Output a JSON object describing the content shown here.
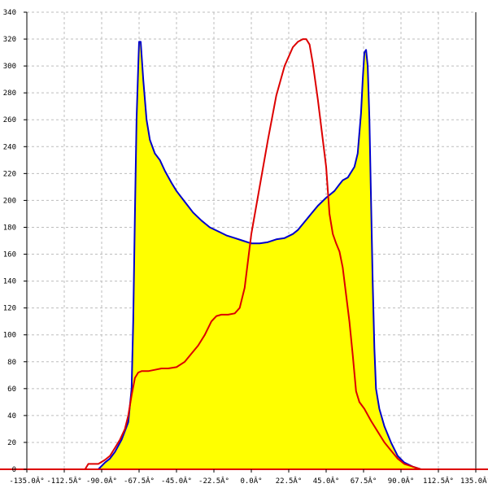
{
  "chart_data": {
    "type": "area",
    "title": "",
    "xlabel": "",
    "ylabel": "",
    "xlim": [
      -135,
      135
    ],
    "ylim": [
      0,
      340
    ],
    "x_ticks": [
      -135,
      -112.5,
      -90,
      -67.5,
      -45,
      -22.5,
      0,
      22.5,
      45,
      67.5,
      90,
      112.5,
      135
    ],
    "x_tick_labels": [
      "-135.0Â°",
      "-112.5Â°",
      "-90.0Â°",
      "-67.5Â°",
      "-45.0Â°",
      "-22.5Â°",
      "0.0Â°",
      "22.5Â°",
      "45.0Â°",
      "67.5Â°",
      "90.0Â°",
      "112.5Â°",
      "135.0Â°"
    ],
    "y_ticks": [
      0,
      20,
      40,
      60,
      80,
      100,
      120,
      140,
      160,
      180,
      200,
      220,
      240,
      260,
      280,
      300,
      320,
      340
    ],
    "y_tick_labels": [
      "0",
      "20",
      "40",
      "60",
      "80",
      "100",
      "120",
      "140",
      "160",
      "180",
      "200",
      "220",
      "240",
      "260",
      "280",
      "300",
      "320",
      "340"
    ],
    "grid": true,
    "series": [
      {
        "color": "#0000cc",
        "fill": "#ffff00",
        "points": [
          [
            -135,
            0
          ],
          [
            -100,
            0
          ],
          [
            -92,
            0
          ],
          [
            -88,
            5
          ],
          [
            -85,
            8
          ],
          [
            -82,
            13
          ],
          [
            -78,
            22
          ],
          [
            -74,
            35
          ],
          [
            -72,
            60
          ],
          [
            -71,
            110
          ],
          [
            -70,
            190
          ],
          [
            -69,
            260
          ],
          [
            -68,
            300
          ],
          [
            -67.5,
            318
          ],
          [
            -66.5,
            318
          ],
          [
            -65,
            290
          ],
          [
            -63,
            260
          ],
          [
            -61,
            245
          ],
          [
            -58,
            235
          ],
          [
            -55,
            230
          ],
          [
            -52,
            222
          ],
          [
            -48,
            213
          ],
          [
            -45,
            207
          ],
          [
            -40,
            199
          ],
          [
            -35,
            191
          ],
          [
            -30,
            185
          ],
          [
            -25,
            180
          ],
          [
            -20,
            177
          ],
          [
            -15,
            174
          ],
          [
            -10,
            172
          ],
          [
            -5,
            170
          ],
          [
            0,
            168
          ],
          [
            5,
            168
          ],
          [
            10,
            169
          ],
          [
            15,
            171
          ],
          [
            20,
            172
          ],
          [
            25,
            175
          ],
          [
            28,
            178
          ],
          [
            32,
            184
          ],
          [
            36,
            190
          ],
          [
            40,
            196
          ],
          [
            45,
            202
          ],
          [
            50,
            207
          ],
          [
            53,
            212
          ],
          [
            55,
            215
          ],
          [
            58,
            217
          ],
          [
            62,
            225
          ],
          [
            64,
            235
          ],
          [
            66,
            265
          ],
          [
            67,
            290
          ],
          [
            68,
            310
          ],
          [
            69,
            312
          ],
          [
            70,
            300
          ],
          [
            71,
            260
          ],
          [
            72,
            200
          ],
          [
            73,
            140
          ],
          [
            74,
            90
          ],
          [
            75,
            60
          ],
          [
            77,
            45
          ],
          [
            80,
            32
          ],
          [
            84,
            20
          ],
          [
            88,
            10
          ],
          [
            92,
            5
          ],
          [
            97,
            2
          ],
          [
            102,
            0
          ],
          [
            135,
            0
          ]
        ]
      },
      {
        "color": "#dd0000",
        "points": [
          [
            -135,
            0
          ],
          [
            -100,
            0
          ],
          [
            -98,
            4
          ],
          [
            -92,
            4
          ],
          [
            -88,
            7
          ],
          [
            -85,
            10
          ],
          [
            -82,
            16
          ],
          [
            -79,
            22
          ],
          [
            -76,
            30
          ],
          [
            -74,
            40
          ],
          [
            -72,
            55
          ],
          [
            -70,
            68
          ],
          [
            -68,
            72
          ],
          [
            -66,
            73
          ],
          [
            -62,
            73
          ],
          [
            -58,
            74
          ],
          [
            -54,
            75
          ],
          [
            -50,
            75
          ],
          [
            -45,
            76
          ],
          [
            -40,
            80
          ],
          [
            -36,
            86
          ],
          [
            -32,
            92
          ],
          [
            -28,
            100
          ],
          [
            -24,
            110
          ],
          [
            -21,
            114
          ],
          [
            -18,
            115
          ],
          [
            -14,
            115
          ],
          [
            -10,
            116
          ],
          [
            -7,
            120
          ],
          [
            -4,
            135
          ],
          [
            -2,
            155
          ],
          [
            0,
            175
          ],
          [
            5,
            210
          ],
          [
            10,
            245
          ],
          [
            15,
            278
          ],
          [
            20,
            300
          ],
          [
            25,
            314
          ],
          [
            28,
            318
          ],
          [
            31,
            320
          ],
          [
            33,
            320
          ],
          [
            35,
            316
          ],
          [
            37,
            302
          ],
          [
            40,
            275
          ],
          [
            45,
            225
          ],
          [
            47,
            190
          ],
          [
            49,
            175
          ],
          [
            51,
            168
          ],
          [
            53,
            162
          ],
          [
            55,
            150
          ],
          [
            57,
            130
          ],
          [
            59,
            110
          ],
          [
            61,
            85
          ],
          [
            63,
            58
          ],
          [
            65,
            50
          ],
          [
            68,
            45
          ],
          [
            72,
            36
          ],
          [
            76,
            28
          ],
          [
            80,
            20
          ],
          [
            84,
            14
          ],
          [
            88,
            8
          ],
          [
            92,
            4
          ],
          [
            97,
            2
          ],
          [
            102,
            0
          ],
          [
            135,
            0
          ]
        ]
      }
    ]
  }
}
